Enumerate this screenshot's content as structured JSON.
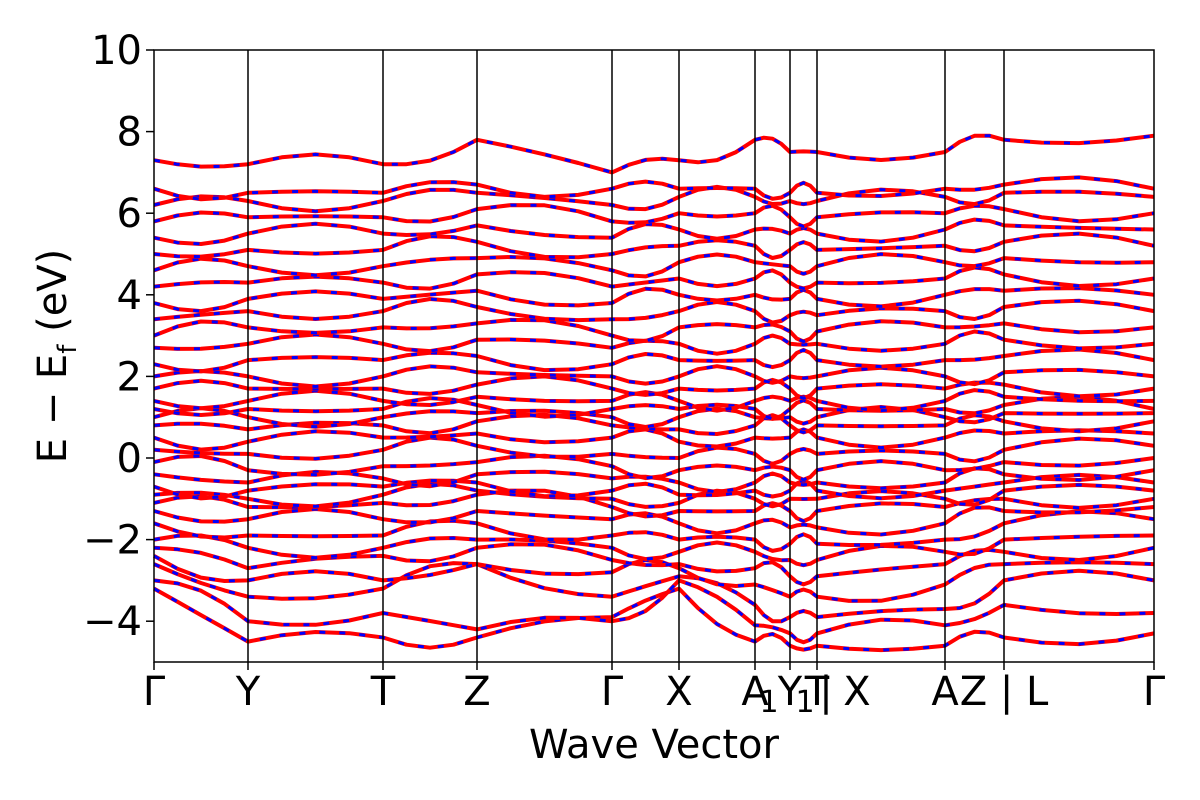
{
  "chart_data": {
    "type": "line",
    "title": "",
    "xlabel": "Wave Vector",
    "ylabel": "E − E",
    "ylabel_sub": "f",
    "ylabel_unit": " (eV)",
    "ylim": [
      -5,
      10
    ],
    "yticks": [
      -4,
      -2,
      0,
      2,
      4,
      6,
      8,
      10
    ],
    "ytick_labels": [
      "−4",
      "−2",
      "0",
      "2",
      "4",
      "6",
      "8",
      "10"
    ],
    "xlim": [
      0,
      1
    ],
    "kpoints": [
      {
        "x": 0.0,
        "label": "Γ"
      },
      {
        "x": 0.094,
        "label": "Y"
      },
      {
        "x": 0.229,
        "label": "T"
      },
      {
        "x": 0.323,
        "label": "Z"
      },
      {
        "x": 0.458,
        "label": "Γ"
      },
      {
        "x": 0.525,
        "label": "X"
      },
      {
        "x": 0.601,
        "label": "A"
      },
      {
        "x": 0.636,
        "label": "Y"
      },
      {
        "x": 0.663,
        "label": "T"
      },
      {
        "x": 0.791,
        "label": "A"
      },
      {
        "x": 0.85,
        "label": "Z | L"
      },
      {
        "x": 1.0,
        "label": "Γ"
      }
    ],
    "extra_tick_labels": [
      {
        "x": 0.607,
        "label": "1"
      },
      {
        "x": 0.643,
        "label": "1"
      },
      {
        "x": 0.672,
        "label": "|"
      },
      {
        "x": 0.703,
        "label": "X"
      }
    ],
    "grid": false,
    "series": [
      {
        "color": "#ff0000",
        "style": "solid",
        "knots": [
          [
            -3.2,
            -4.5,
            -4.4,
            -4.4,
            -3.9,
            -3.2,
            -4.5,
            -4.6,
            -4.6,
            -4.6,
            -4.4,
            -4.3,
            -3.2
          ],
          [
            -3.0,
            -4.0,
            -3.8,
            -4.2,
            -4.0,
            -3.0,
            -4.1,
            -4.3,
            -4.3,
            -4.1,
            -3.6,
            -3.8,
            -3.3
          ],
          [
            -2.6,
            -3.4,
            -3.2,
            -2.6,
            -3.4,
            -2.9,
            -3.6,
            -3.9,
            -3.9,
            -3.7,
            -3.0,
            -3.0,
            -2.9
          ],
          [
            -2.4,
            -3.0,
            -3.0,
            -2.6,
            -2.8,
            -2.7,
            -3.1,
            -3.4,
            -3.4,
            -3.1,
            -2.6,
            -2.6,
            -2.4
          ],
          [
            -2.2,
            -2.7,
            -2.4,
            -2.2,
            -2.5,
            -2.6,
            -2.7,
            -2.9,
            -2.9,
            -2.6,
            -2.3,
            -2.2,
            -2.2
          ],
          [
            -2.0,
            -2.2,
            -2.2,
            -2.0,
            -2.2,
            -2.3,
            -2.3,
            -2.5,
            -2.5,
            -2.3,
            -2.0,
            -1.9,
            -1.9
          ],
          [
            -1.6,
            -1.9,
            -1.9,
            -1.6,
            -1.9,
            -2.0,
            -2.0,
            -2.1,
            -2.1,
            -2.0,
            -1.6,
            -1.5,
            -1.5
          ],
          [
            -1.3,
            -1.5,
            -1.5,
            -1.3,
            -1.5,
            -1.6,
            -1.6,
            -1.7,
            -1.7,
            -1.6,
            -1.3,
            -1.2,
            -1.3
          ],
          [
            -1.1,
            -1.2,
            -1.1,
            -0.9,
            -1.2,
            -1.3,
            -1.3,
            -1.3,
            -1.3,
            -1.2,
            -1.0,
            -1.0,
            -1.0
          ],
          [
            -0.9,
            -1.0,
            -0.9,
            -0.8,
            -1.0,
            -1.1,
            -1.0,
            -1.0,
            -1.0,
            -1.0,
            -0.8,
            -0.8,
            -0.8
          ],
          [
            -0.7,
            -0.8,
            -0.7,
            -0.6,
            -0.8,
            -0.9,
            -0.8,
            -0.8,
            -0.8,
            -0.8,
            -0.6,
            -0.6,
            -0.6
          ],
          [
            -0.4,
            -0.6,
            -0.5,
            -0.4,
            -0.5,
            -0.6,
            -0.6,
            -0.6,
            -0.6,
            -0.6,
            -0.4,
            -0.3,
            -0.3
          ],
          [
            -0.1,
            -0.3,
            -0.2,
            -0.1,
            -0.2,
            -0.3,
            -0.3,
            -0.3,
            -0.3,
            -0.3,
            -0.1,
            0.0,
            -0.1
          ],
          [
            0.2,
            0.1,
            0.2,
            0.3,
            0.1,
            0.0,
            0.1,
            0.1,
            0.1,
            0.1,
            0.2,
            0.3,
            0.2
          ],
          [
            0.5,
            0.4,
            0.5,
            0.6,
            0.5,
            0.4,
            0.5,
            0.5,
            0.5,
            0.5,
            0.6,
            0.6,
            0.5
          ],
          [
            0.8,
            0.7,
            0.8,
            0.9,
            0.8,
            0.7,
            0.8,
            0.8,
            0.8,
            0.8,
            0.9,
            0.9,
            0.8
          ],
          [
            1.0,
            1.0,
            1.0,
            1.1,
            1.0,
            1.0,
            1.0,
            1.0,
            1.0,
            1.0,
            1.1,
            1.1,
            1.0
          ],
          [
            1.2,
            1.2,
            1.2,
            1.3,
            1.2,
            1.2,
            1.2,
            1.2,
            1.2,
            1.2,
            1.3,
            1.2,
            1.2
          ],
          [
            1.4,
            1.4,
            1.4,
            1.5,
            1.4,
            1.4,
            1.4,
            1.4,
            1.4,
            1.4,
            1.5,
            1.4,
            1.4
          ],
          [
            1.7,
            1.7,
            1.7,
            1.8,
            1.7,
            1.7,
            1.7,
            1.7,
            1.7,
            1.7,
            1.8,
            1.7,
            1.7
          ],
          [
            2.0,
            2.0,
            2.0,
            2.1,
            2.0,
            2.0,
            2.0,
            2.0,
            2.0,
            2.0,
            2.1,
            2.0,
            2.0
          ],
          [
            2.3,
            2.4,
            2.4,
            2.5,
            2.3,
            2.4,
            2.4,
            2.4,
            2.4,
            2.4,
            2.5,
            2.4,
            2.3
          ],
          [
            2.7,
            2.8,
            2.8,
            2.9,
            2.7,
            2.8,
            2.8,
            2.8,
            2.8,
            2.8,
            2.9,
            2.8,
            2.7
          ],
          [
            3.0,
            3.2,
            3.2,
            3.3,
            3.0,
            3.2,
            3.2,
            3.1,
            3.1,
            3.2,
            3.3,
            3.2,
            3.0
          ],
          [
            3.4,
            3.6,
            3.6,
            3.7,
            3.4,
            3.6,
            3.6,
            3.5,
            3.5,
            3.6,
            3.7,
            3.6,
            3.4
          ],
          [
            3.8,
            3.9,
            3.9,
            4.1,
            3.8,
            4.0,
            4.0,
            3.9,
            3.9,
            4.0,
            4.1,
            4.0,
            3.8
          ],
          [
            4.2,
            4.3,
            4.3,
            4.5,
            4.2,
            4.4,
            4.4,
            4.3,
            4.3,
            4.4,
            4.5,
            4.4,
            4.2
          ],
          [
            4.6,
            4.7,
            4.7,
            4.9,
            4.6,
            4.8,
            4.8,
            4.7,
            4.7,
            4.8,
            4.9,
            4.8,
            4.6
          ],
          [
            5.0,
            5.1,
            5.1,
            5.3,
            5.0,
            5.2,
            5.2,
            5.1,
            5.1,
            5.2,
            5.3,
            5.2,
            5.0
          ],
          [
            5.4,
            5.5,
            5.5,
            5.7,
            5.4,
            5.6,
            5.6,
            5.5,
            5.5,
            5.6,
            5.7,
            5.6,
            5.4
          ],
          [
            5.8,
            5.9,
            5.9,
            6.1,
            5.8,
            6.0,
            6.0,
            5.9,
            5.9,
            6.0,
            6.1,
            6.0,
            5.8
          ],
          [
            6.2,
            6.3,
            6.3,
            6.5,
            6.2,
            6.4,
            6.4,
            6.3,
            6.3,
            6.4,
            6.5,
            6.4,
            6.2
          ],
          [
            6.6,
            6.5,
            6.5,
            6.7,
            6.6,
            6.6,
            6.6,
            6.5,
            6.5,
            6.6,
            6.7,
            6.6,
            6.6
          ],
          [
            7.3,
            7.2,
            7.2,
            7.8,
            7.0,
            7.3,
            7.8,
            7.5,
            7.5,
            7.5,
            7.8,
            7.9,
            7.3
          ]
        ]
      },
      {
        "color": "#0000ff",
        "style": "dashed",
        "same_as": 0
      }
    ]
  }
}
